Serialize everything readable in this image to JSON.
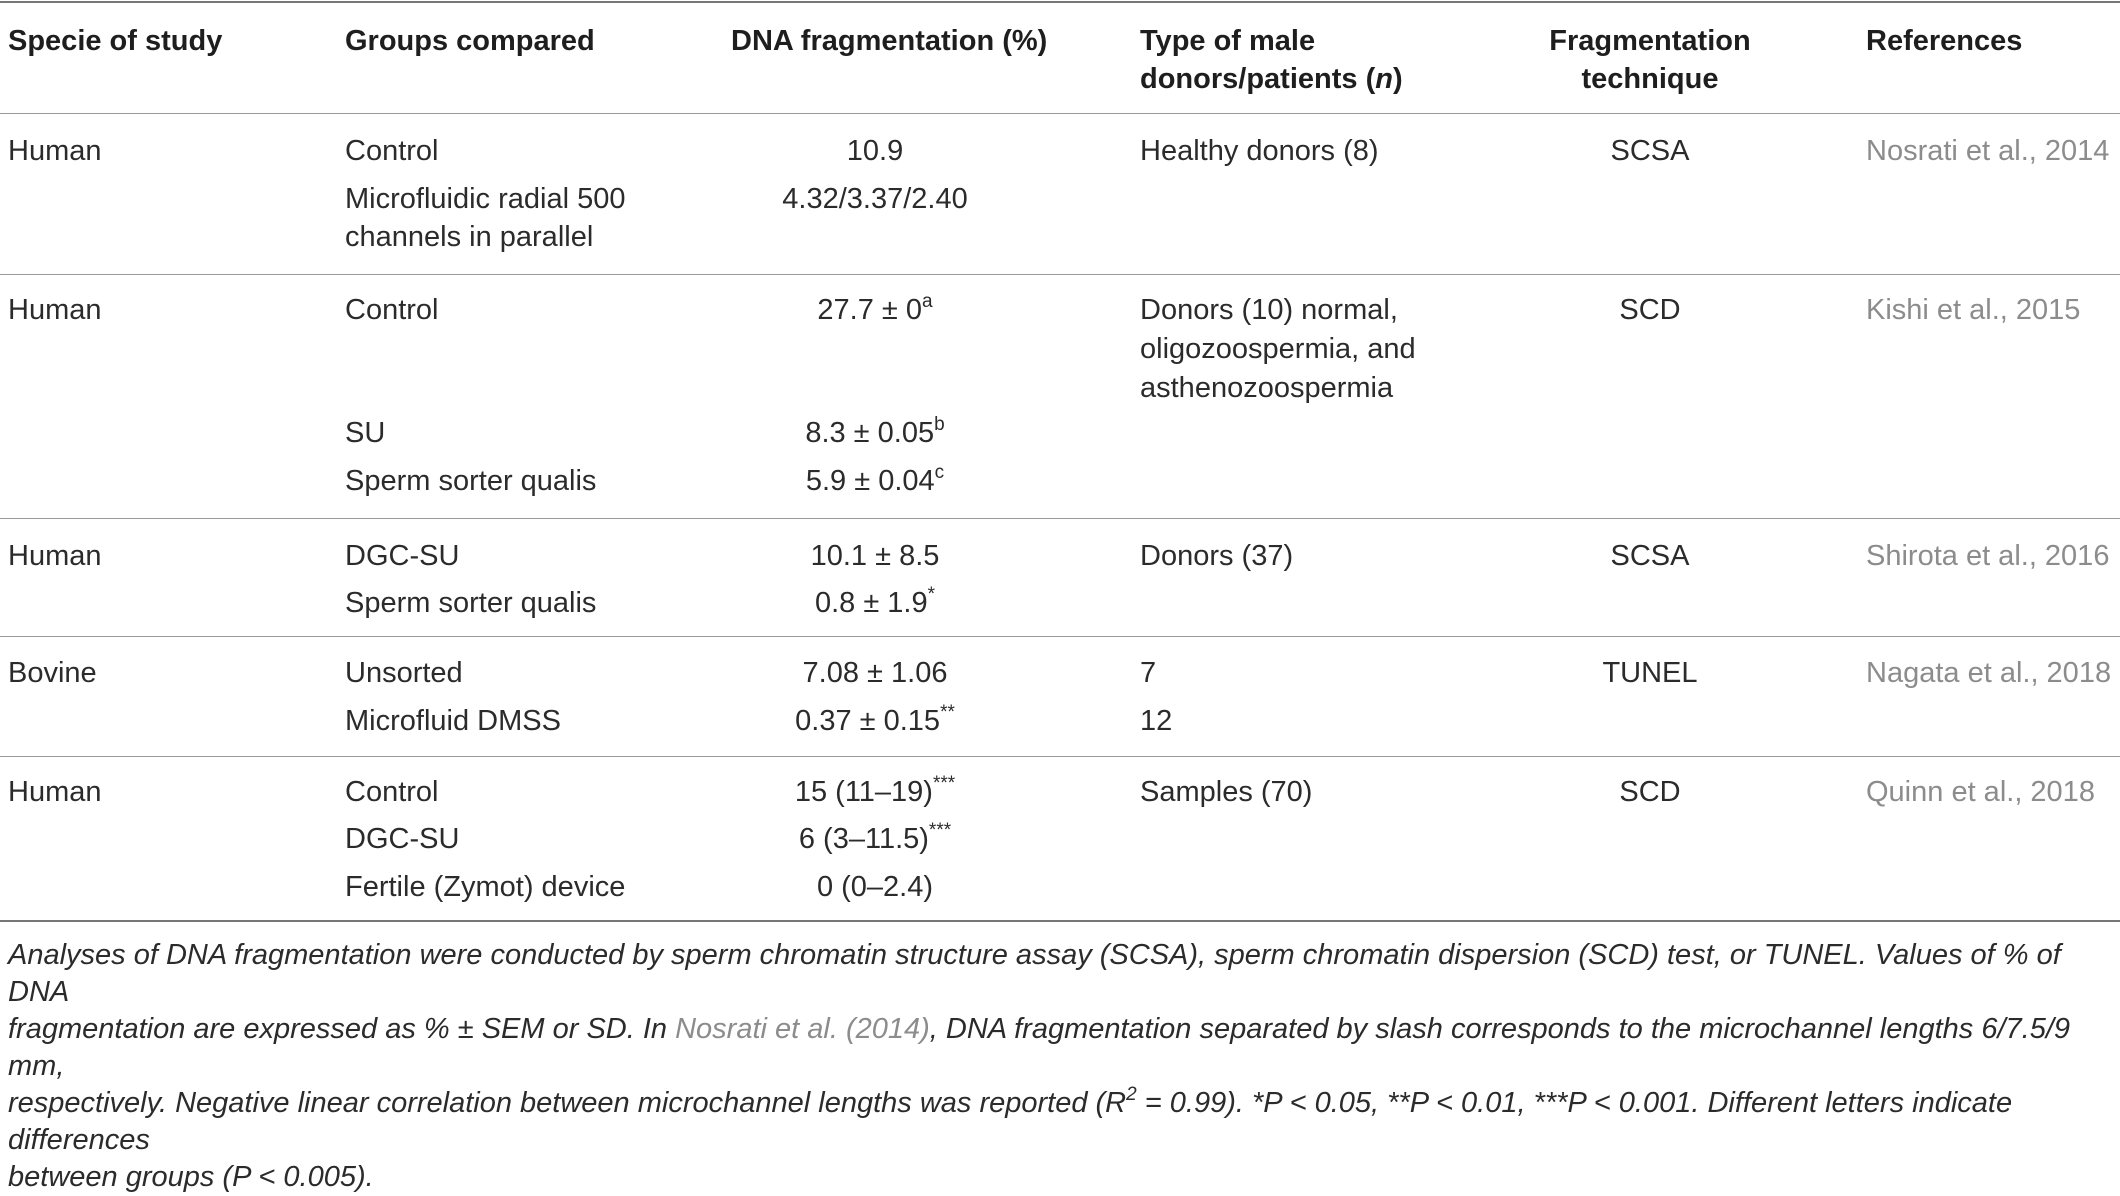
{
  "headers": {
    "species": "Specie of study",
    "groups": "Groups compared",
    "dna": "DNA fragmentation (%)",
    "donors_a": "Type of male",
    "donors_b": "donors/patients (",
    "donors_n": "n",
    "donors_c": ")",
    "technique_a": "Fragmentation",
    "technique_b": "technique",
    "references": "References"
  },
  "rows": [
    {
      "species": "Human",
      "groups": [
        "Control",
        "Microfluidic radial 500",
        "channels in parallel"
      ],
      "dna": [
        "10.9",
        "4.32/3.37/2.40"
      ],
      "donors": [
        "Healthy donors (8)"
      ],
      "technique": "SCSA",
      "reference": "Nosrati et al., 2014"
    },
    {
      "species": "Human",
      "groups": [
        "Control",
        "SU",
        "Sperm sorter qualis"
      ],
      "dna": [
        {
          "text": "27.7 ± 0",
          "sup": "a"
        },
        {
          "text": "8.3 ± 0.05",
          "sup": "b"
        },
        {
          "text": "5.9 ± 0.04",
          "sup": "c"
        }
      ],
      "donors": [
        "Donors (10) normal,",
        "oligozoospermia, and",
        "asthenozoospermia"
      ],
      "technique": "SCD",
      "reference": "Kishi et al., 2015"
    },
    {
      "species": "Human",
      "groups": [
        "DGC-SU",
        "Sperm sorter qualis"
      ],
      "dna": [
        {
          "text": "10.1 ± 8.5",
          "sup": ""
        },
        {
          "text": "0.8 ± 1.9",
          "sup": "*"
        }
      ],
      "donors": [
        "Donors (37)"
      ],
      "technique": "SCSA",
      "reference": "Shirota et al., 2016"
    },
    {
      "species": "Bovine",
      "groups": [
        "Unsorted",
        "Microfluid DMSS"
      ],
      "dna": [
        {
          "text": "7.08 ± 1.06",
          "sup": ""
        },
        {
          "text": "0.37 ± 0.15",
          "sup": "**"
        }
      ],
      "donors": [
        "7",
        "12"
      ],
      "technique": "TUNEL",
      "reference": "Nagata et al., 2018"
    },
    {
      "species": "Human",
      "groups": [
        "Control",
        "DGC-SU",
        "Fertile (Zymot) device"
      ],
      "dna": [
        {
          "text": "15 (11–19)",
          "sup": "***"
        },
        {
          "text": "6 (3–11.5)",
          "sup": "***"
        },
        {
          "text": "0 (0–2.4)",
          "sup": ""
        }
      ],
      "donors": [
        "Samples (70)"
      ],
      "technique": "SCD",
      "reference": "Quinn et al., 2018"
    }
  ],
  "footnote": {
    "line1": "Analyses of DNA fragmentation were conducted by sperm chromatin structure assay (SCSA), sperm chromatin dispersion (SCD) test, or TUNEL. Values of % of DNA",
    "line2": "fragmentation are expressed as % ± SEM or SD. In ",
    "link": "Nosrati et al. (2014)",
    "line3": ", DNA fragmentation separated by slash corresponds to the microchannel lengths 6/7.5/9 mm,",
    "line4a": "respectively. Negative linear correlation between microchannel lengths was reported (R",
    "r2sup": "2",
    "line4b": " = 0.99). *P < 0.05, **P < 0.01, ***P < 0.001. Different letters indicate differences",
    "line5": "between groups (P < 0.005)."
  }
}
